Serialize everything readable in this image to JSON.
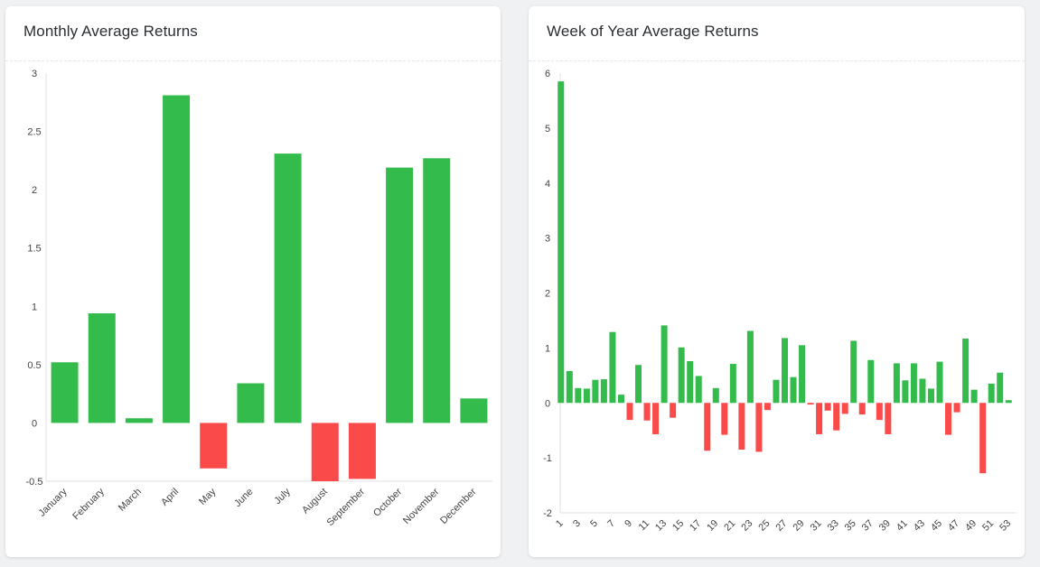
{
  "colors": {
    "positive": "#33bb4c",
    "negative": "#fa4a4a",
    "axis": "#e0e0e0",
    "text": "#444444"
  },
  "chart_data": [
    {
      "id": "monthly",
      "type": "bar",
      "title": "Monthly Average Returns",
      "categories": [
        "January",
        "February",
        "March",
        "April",
        "May",
        "June",
        "July",
        "August",
        "September",
        "October",
        "November",
        "December"
      ],
      "values": [
        0.52,
        0.94,
        0.04,
        2.81,
        -0.39,
        0.34,
        2.31,
        -0.5,
        -0.48,
        2.19,
        2.27,
        0.21
      ],
      "ylim": [
        -0.5,
        3
      ],
      "yticks": [
        "3",
        "2.5",
        "2",
        "1.5",
        "1",
        "0.5",
        "0",
        "-0.5"
      ],
      "ytick_values": [
        3,
        2.5,
        2,
        1.5,
        1,
        0.5,
        0,
        -0.5
      ],
      "xlabel": "",
      "ylabel": ""
    },
    {
      "id": "weekly",
      "type": "bar",
      "title": "Week of Year Average Returns",
      "categories": [
        "1",
        "2",
        "3",
        "4",
        "5",
        "6",
        "7",
        "8",
        "9",
        "10",
        "11",
        "12",
        "13",
        "14",
        "15",
        "16",
        "17",
        "18",
        "19",
        "20",
        "21",
        "22",
        "23",
        "24",
        "25",
        "26",
        "27",
        "28",
        "29",
        "30",
        "31",
        "32",
        "33",
        "34",
        "35",
        "36",
        "37",
        "38",
        "39",
        "40",
        "41",
        "42",
        "43",
        "44",
        "45",
        "46",
        "47",
        "48",
        "49",
        "50",
        "51",
        "52",
        "53"
      ],
      "values": [
        5.85,
        0.58,
        0.27,
        0.26,
        0.42,
        0.43,
        1.29,
        0.15,
        -0.31,
        0.69,
        -0.32,
        -0.57,
        1.41,
        -0.27,
        1.01,
        0.76,
        0.49,
        -0.87,
        0.27,
        -0.58,
        0.71,
        -0.85,
        1.31,
        -0.89,
        -0.13,
        0.42,
        1.18,
        0.47,
        1.05,
        -0.03,
        -0.57,
        -0.14,
        -0.5,
        -0.2,
        1.13,
        -0.21,
        0.78,
        -0.31,
        -0.57,
        0.72,
        0.41,
        0.72,
        0.44,
        0.26,
        0.75,
        -0.58,
        -0.17,
        1.17,
        0.24,
        -1.28,
        0.35,
        0.55,
        0.05
      ],
      "ylim": [
        -2,
        6
      ],
      "yticks": [
        "6",
        "5",
        "4",
        "3",
        "2",
        "1",
        "0",
        "-1",
        "-2"
      ],
      "ytick_values": [
        6,
        5,
        4,
        3,
        2,
        1,
        0,
        -1,
        -2
      ],
      "xtick_labels": [
        "1",
        "3",
        "5",
        "7",
        "9",
        "11",
        "13",
        "15",
        "17",
        "19",
        "21",
        "23",
        "25",
        "27",
        "29",
        "31",
        "33",
        "35",
        "37",
        "39",
        "41",
        "43",
        "45",
        "47",
        "49",
        "51",
        "53"
      ],
      "xlabel": "",
      "ylabel": ""
    }
  ]
}
